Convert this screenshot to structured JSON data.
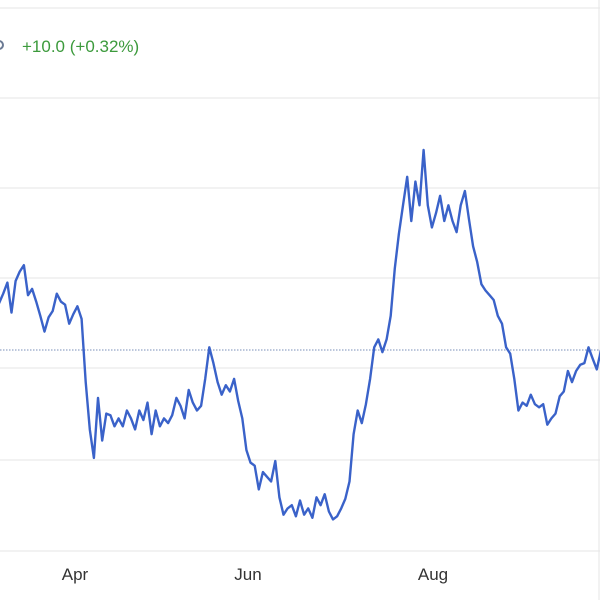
{
  "change_text": "+10.0 (+0.32%)",
  "colors": {
    "line": "#3a62c9",
    "up": "#3c9a3c",
    "grid": "#e6e6e6",
    "reference": "#7a8fb8",
    "text": "#333333"
  },
  "chart_data": {
    "type": "line",
    "title": "",
    "xlabel": "",
    "ylabel": "",
    "x_ticks": [
      "Apr",
      "Jun",
      "Aug"
    ],
    "reference_line": true,
    "grid": "horizontal",
    "legend": "none",
    "series": [
      {
        "values": [
          250,
          238,
          244,
          251,
          232,
          252,
          258,
          262,
          243,
          247,
          239,
          230,
          220,
          229,
          233,
          244,
          239,
          237,
          225,
          231,
          236,
          228,
          188,
          158,
          140,
          178,
          151,
          168,
          167,
          160,
          165,
          160,
          170,
          165,
          158,
          170,
          164,
          175,
          155,
          170,
          160,
          165,
          162,
          167,
          178,
          173,
          165,
          183,
          175,
          170,
          173,
          190,
          210,
          200,
          188,
          180,
          186,
          182,
          190,
          176,
          165,
          145,
          137,
          135,
          120,
          131,
          128,
          125,
          138,
          115,
          104,
          108,
          110,
          103,
          113,
          104,
          108,
          102,
          115,
          110,
          117,
          106,
          101,
          103,
          108,
          114,
          125,
          155,
          170,
          162,
          174,
          190,
          210,
          215,
          207,
          215,
          230,
          260,
          282,
          300,
          318,
          290,
          315,
          300,
          335,
          300,
          286,
          295,
          306,
          290,
          300,
          290,
          283,
          300,
          309,
          291,
          274,
          264,
          250,
          246,
          243,
          240,
          230,
          225,
          210,
          206,
          190,
          170,
          175,
          173,
          180,
          174,
          172,
          174,
          161,
          165,
          168,
          179,
          182,
          195,
          188,
          195,
          199,
          200,
          210,
          203,
          196,
          208,
          190
        ]
      }
    ]
  }
}
